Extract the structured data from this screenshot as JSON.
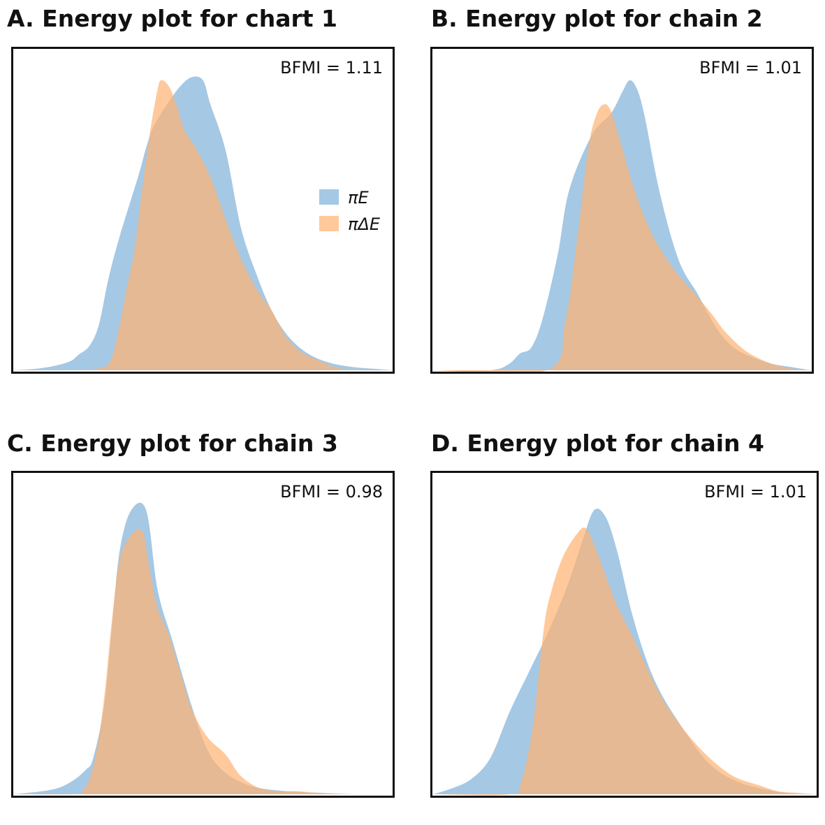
{
  "colors": {
    "pi_E": "#7fb0d8",
    "pi_dE": "#ffb270",
    "frame": "#111111"
  },
  "chart_data": [
    {
      "type": "area",
      "title": "A. Energy plot for chart 1",
      "annotation": "BFMI = 1.11",
      "legend": {
        "placement": "center-right",
        "entries": [
          "πE",
          "πΔE"
        ]
      },
      "xlim": [
        0,
        1
      ],
      "ylim": [
        0,
        1
      ],
      "grid": false,
      "series": [
        {
          "name": "πE",
          "x": [
            0.0,
            0.06,
            0.11,
            0.15,
            0.17,
            0.2,
            0.225,
            0.25,
            0.28,
            0.33,
            0.35,
            0.37,
            0.41,
            0.44,
            0.47,
            0.5,
            0.52,
            0.56,
            0.6,
            0.64,
            0.68,
            0.72,
            0.76,
            0.8,
            0.85,
            0.9,
            0.95,
            1.0
          ],
          "y": [
            0.0,
            0.005,
            0.015,
            0.03,
            0.05,
            0.08,
            0.15,
            0.3,
            0.44,
            0.64,
            0.73,
            0.8,
            0.88,
            0.93,
            0.96,
            0.95,
            0.87,
            0.72,
            0.47,
            0.32,
            0.2,
            0.12,
            0.07,
            0.04,
            0.02,
            0.01,
            0.005,
            0.0
          ]
        },
        {
          "name": "πΔE",
          "x": [
            0.0,
            0.15,
            0.22,
            0.255,
            0.28,
            0.3,
            0.32,
            0.34,
            0.36,
            0.38,
            0.39,
            0.41,
            0.43,
            0.45,
            0.48,
            0.51,
            0.53,
            0.57,
            0.61,
            0.65,
            0.68,
            0.72,
            0.76,
            0.81,
            0.85,
            0.9,
            1.0
          ],
          "y": [
            0.0,
            0.0,
            0.005,
            0.03,
            0.15,
            0.28,
            0.4,
            0.6,
            0.78,
            0.92,
            0.95,
            0.93,
            0.87,
            0.79,
            0.73,
            0.66,
            0.6,
            0.46,
            0.34,
            0.25,
            0.2,
            0.11,
            0.06,
            0.03,
            0.01,
            0.0,
            0.0
          ]
        }
      ]
    },
    {
      "type": "area",
      "title": "B. Energy plot for chain 2",
      "annotation": "BFMI = 1.01",
      "xlim": [
        0,
        1
      ],
      "ylim": [
        0,
        1
      ],
      "grid": false,
      "series": [
        {
          "name": "πE",
          "x": [
            0.0,
            0.15,
            0.2,
            0.23,
            0.26,
            0.29,
            0.33,
            0.36,
            0.42,
            0.47,
            0.5,
            0.52,
            0.54,
            0.56,
            0.6,
            0.65,
            0.7,
            0.73,
            0.76,
            0.8,
            0.85,
            0.9,
            0.95,
            1.0
          ],
          "y": [
            0.0,
            0.0,
            0.02,
            0.055,
            0.075,
            0.17,
            0.38,
            0.59,
            0.77,
            0.84,
            0.91,
            0.95,
            0.92,
            0.83,
            0.58,
            0.36,
            0.25,
            0.18,
            0.12,
            0.07,
            0.04,
            0.02,
            0.01,
            0.0
          ]
        },
        {
          "name": "πΔE",
          "x": [
            0.0,
            0.3,
            0.35,
            0.38,
            0.41,
            0.43,
            0.45,
            0.47,
            0.5,
            0.53,
            0.57,
            0.61,
            0.65,
            0.7,
            0.74,
            0.77,
            0.82,
            0.86,
            0.9,
            0.95,
            1.0
          ],
          "y": [
            0.0,
            0.0,
            0.16,
            0.42,
            0.72,
            0.83,
            0.87,
            0.85,
            0.73,
            0.6,
            0.47,
            0.38,
            0.31,
            0.24,
            0.18,
            0.13,
            0.07,
            0.04,
            0.02,
            0.005,
            0.0
          ]
        }
      ]
    },
    {
      "type": "area",
      "title": "C. Energy plot for chain 3",
      "annotation": "BFMI = 0.98",
      "xlim": [
        0,
        1
      ],
      "ylim": [
        0,
        1
      ],
      "grid": false,
      "series": [
        {
          "name": "πE",
          "x": [
            0.0,
            0.1,
            0.15,
            0.19,
            0.21,
            0.24,
            0.26,
            0.28,
            0.31,
            0.35,
            0.38,
            0.42,
            0.47,
            0.51,
            0.55,
            0.6,
            0.65,
            0.72,
            0.8,
            0.9,
            1.0
          ],
          "y": [
            0.0,
            0.015,
            0.04,
            0.08,
            0.12,
            0.3,
            0.56,
            0.8,
            0.93,
            0.93,
            0.67,
            0.5,
            0.29,
            0.15,
            0.08,
            0.04,
            0.02,
            0.01,
            0.005,
            0.0,
            0.0
          ]
        },
        {
          "name": "πΔE",
          "x": [
            0.0,
            0.16,
            0.18,
            0.2,
            0.22,
            0.24,
            0.26,
            0.28,
            0.31,
            0.34,
            0.36,
            0.38,
            0.41,
            0.44,
            0.47,
            0.51,
            0.56,
            0.6,
            0.65,
            0.7,
            0.75,
            0.8,
            0.9,
            1.0
          ],
          "y": [
            0.0,
            0.0,
            0.01,
            0.05,
            0.15,
            0.33,
            0.58,
            0.77,
            0.85,
            0.86,
            0.73,
            0.61,
            0.52,
            0.4,
            0.28,
            0.19,
            0.13,
            0.06,
            0.02,
            0.01,
            0.01,
            0.005,
            0.0,
            0.0
          ]
        }
      ]
    },
    {
      "type": "area",
      "title": "D. Energy plot for chain 4",
      "annotation": "BFMI = 1.01",
      "xlim": [
        0,
        1
      ],
      "ylim": [
        0,
        1
      ],
      "grid": false,
      "series": [
        {
          "name": "πE",
          "x": [
            0.0,
            0.05,
            0.1,
            0.15,
            0.2,
            0.25,
            0.3,
            0.35,
            0.39,
            0.42,
            0.45,
            0.48,
            0.52,
            0.56,
            0.6,
            0.65,
            0.7,
            0.74,
            0.78,
            0.82,
            0.87,
            0.92,
            0.96,
            1.0
          ],
          "y": [
            0.0,
            0.02,
            0.05,
            0.12,
            0.27,
            0.4,
            0.53,
            0.68,
            0.83,
            0.93,
            0.91,
            0.8,
            0.59,
            0.43,
            0.32,
            0.22,
            0.13,
            0.08,
            0.05,
            0.03,
            0.015,
            0.005,
            0.0,
            0.0
          ]
        },
        {
          "name": "πΔE",
          "x": [
            0.0,
            0.2,
            0.23,
            0.26,
            0.29,
            0.31,
            0.34,
            0.38,
            0.4,
            0.42,
            0.45,
            0.48,
            0.52,
            0.56,
            0.6,
            0.65,
            0.69,
            0.73,
            0.77,
            0.8,
            0.85,
            0.9,
            0.95,
            1.0
          ],
          "y": [
            0.0,
            0.0,
            0.04,
            0.22,
            0.55,
            0.67,
            0.78,
            0.86,
            0.87,
            0.82,
            0.72,
            0.62,
            0.52,
            0.41,
            0.31,
            0.22,
            0.16,
            0.11,
            0.07,
            0.05,
            0.03,
            0.01,
            0.005,
            0.0
          ]
        }
      ]
    }
  ]
}
